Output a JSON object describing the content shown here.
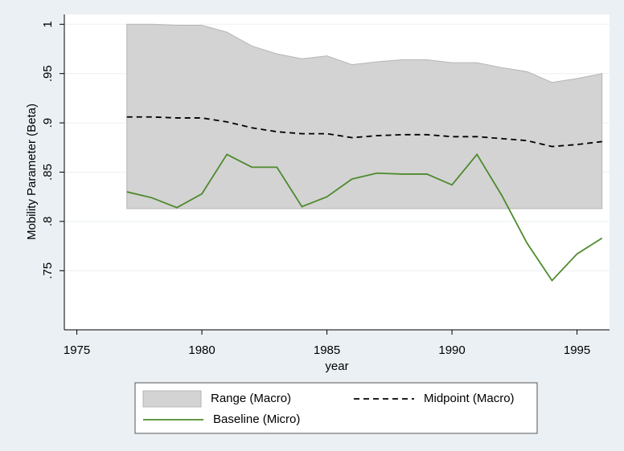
{
  "chart_data": {
    "type": "line",
    "x_label": "year",
    "y_label": "Mobility Parameter (Beta)",
    "x": [
      1977,
      1978,
      1979,
      1980,
      1981,
      1982,
      1983,
      1984,
      1985,
      1986,
      1987,
      1988,
      1989,
      1990,
      1991,
      1992,
      1993,
      1994,
      1995,
      1996
    ],
    "series": [
      {
        "name": "Range (Macro)",
        "kind": "band",
        "color": "#d3d3d3",
        "upper": [
          1.0,
          1.0,
          0.999,
          0.999,
          0.992,
          0.978,
          0.97,
          0.965,
          0.968,
          0.959,
          0.962,
          0.964,
          0.964,
          0.961,
          0.961,
          0.956,
          0.952,
          0.941,
          0.945,
          0.95
        ],
        "lower": [
          0.813,
          0.813,
          0.813,
          0.813,
          0.813,
          0.813,
          0.813,
          0.813,
          0.813,
          0.813,
          0.813,
          0.813,
          0.813,
          0.813,
          0.813,
          0.813,
          0.813,
          0.813,
          0.813,
          0.813
        ]
      },
      {
        "name": "Midpoint (Macro)",
        "kind": "dashed",
        "color": "#000000",
        "values": [
          0.906,
          0.906,
          0.905,
          0.905,
          0.901,
          0.895,
          0.891,
          0.889,
          0.889,
          0.885,
          0.887,
          0.888,
          0.888,
          0.886,
          0.886,
          0.884,
          0.882,
          0.876,
          0.878,
          0.881
        ]
      },
      {
        "name": "Baseline (Micro)",
        "kind": "solid",
        "color": "#4e8a2e",
        "values": [
          0.83,
          0.824,
          0.814,
          0.828,
          0.868,
          0.855,
          0.855,
          0.815,
          0.825,
          0.843,
          0.849,
          0.848,
          0.848,
          0.837,
          0.868,
          0.826,
          0.778,
          0.74,
          0.767,
          0.783
        ]
      }
    ],
    "xlim": [
      1974.5,
      1996.3
    ],
    "ylim": [
      0.69,
      1.01
    ],
    "xticks": [
      1975,
      1980,
      1985,
      1990,
      1995
    ],
    "yticks": [
      {
        "value": 0.75,
        "label": ".75"
      },
      {
        "value": 0.8,
        "label": ".8"
      },
      {
        "value": 0.85,
        "label": ".85"
      },
      {
        "value": 0.9,
        "label": ".9"
      },
      {
        "value": 0.95,
        "label": ".95"
      },
      1
    ],
    "grid": true
  }
}
